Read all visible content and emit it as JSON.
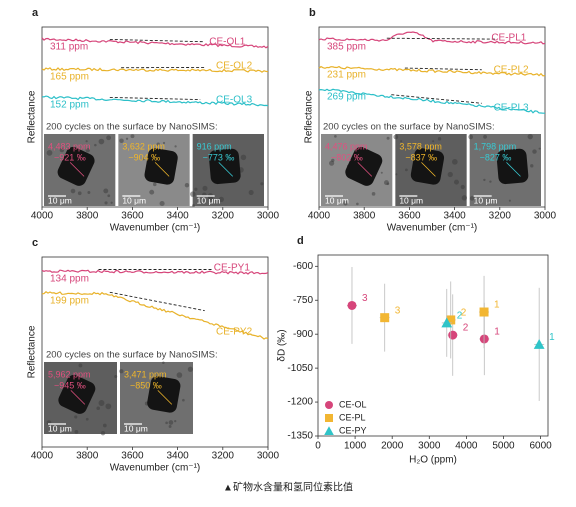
{
  "spectra": [
    {
      "letter": "a",
      "ylabel": "Reflectance",
      "xlabel": "Wavenumber (cm⁻¹)",
      "xlim": [
        4000,
        3000
      ],
      "xticks": [
        4000,
        3800,
        3600,
        3400,
        3200,
        3000
      ],
      "note": "200 cycles on the surface by NanoSIMS:",
      "curves": [
        {
          "name": "CE-OL1",
          "ppm": "311 ppm",
          "color": "#d6457a"
        },
        {
          "name": "CE-OL2",
          "ppm": "165 ppm",
          "color": "#e8b22a"
        },
        {
          "name": "CE-OL3",
          "ppm": "152 ppm",
          "color": "#2bbfc8"
        }
      ],
      "images": [
        {
          "ppm": "4,483 ppm",
          "dD": "−921 ‰",
          "scale": "10 μm",
          "color": "#e0507f"
        },
        {
          "ppm": "3,632 ppm",
          "dD": "−904 ‰",
          "scale": "10 μm",
          "color": "#f0b62a"
        },
        {
          "ppm": "916 ppm",
          "dD": "−773 ‰",
          "scale": "10 μm",
          "color": "#38c9d2"
        }
      ]
    },
    {
      "letter": "b",
      "ylabel": "Reflectance",
      "xlabel": "Wavenumber (cm⁻¹)",
      "xlim": [
        4000,
        3000
      ],
      "xticks": [
        4000,
        3800,
        3600,
        3400,
        3200,
        3000
      ],
      "note": "200 cycles on the surface by NanoSIMS:",
      "curves": [
        {
          "name": "CE-PL1",
          "ppm": "385 ppm",
          "color": "#d6457a"
        },
        {
          "name": "CE-PL2",
          "ppm": "231 ppm",
          "color": "#e8b22a"
        },
        {
          "name": "CE-PL3",
          "ppm": "269 ppm",
          "color": "#2bbfc8"
        }
      ],
      "images": [
        {
          "ppm": "4,476 ppm",
          "dD": "−802 ‰",
          "scale": "10 μm",
          "color": "#e0507f"
        },
        {
          "ppm": "3,578 ppm",
          "dD": "−837 ‰",
          "scale": "10 μm",
          "color": "#f0b62a"
        },
        {
          "ppm": "1,798 ppm",
          "dD": "−827 ‰",
          "scale": "10 μm",
          "color": "#38c9d2"
        }
      ]
    },
    {
      "letter": "c",
      "ylabel": "Reflectance",
      "xlabel": "Wavenumber (cm⁻¹)",
      "xlim": [
        4000,
        3000
      ],
      "xticks": [
        4000,
        3800,
        3600,
        3400,
        3200,
        3000
      ],
      "note": "200 cycles on the surface by NanoSIMS:",
      "curves": [
        {
          "name": "CE-PY1",
          "ppm": "134 ppm",
          "color": "#d6457a"
        },
        {
          "name": "CE-PY2",
          "ppm": "199 ppm",
          "color": "#e8b22a"
        }
      ],
      "images": [
        {
          "ppm": "5,962 ppm",
          "dD": "−945 ‰",
          "scale": "10 μm",
          "color": "#e0507f"
        },
        {
          "ppm": "3,471 ppm",
          "dD": "−850 ‰",
          "scale": "10 μm",
          "color": "#f0b62a"
        }
      ]
    }
  ],
  "chart_data": {
    "type": "scatter",
    "letter": "d",
    "xlabel": "H₂O (ppm)",
    "ylabel": "δD (‰)",
    "xlim": [
      0,
      6200
    ],
    "xticks": [
      0,
      1000,
      2000,
      3000,
      4000,
      5000,
      6000
    ],
    "ylim": [
      -1350,
      -550
    ],
    "yticks": [
      -600,
      -750,
      -900,
      -1050,
      -1200,
      -1350
    ],
    "series": [
      {
        "name": "CE-OL",
        "color": "#d6457a",
        "marker": "circle",
        "x": [
          4483,
          3632,
          916
        ],
        "values": [
          -921,
          -904,
          -773
        ],
        "yerr": [
          160,
          180,
          170
        ],
        "labels": [
          "1",
          "2",
          "3"
        ]
      },
      {
        "name": "CE-PL",
        "color": "#f2b632",
        "marker": "square",
        "x": [
          4476,
          3578,
          1798
        ],
        "values": [
          -802,
          -837,
          -827
        ],
        "yerr": [
          160,
          170,
          150
        ],
        "labels": [
          "1",
          "2",
          "3"
        ]
      },
      {
        "name": "CE-PY",
        "color": "#2fc4c8",
        "marker": "triangle",
        "x": [
          5962,
          3471
        ],
        "values": [
          -945,
          -850
        ],
        "yerr": [
          250,
          150
        ],
        "labels": [
          "1",
          "2"
        ]
      }
    ]
  },
  "caption": "▲矿物水含量和氢同位素比值"
}
